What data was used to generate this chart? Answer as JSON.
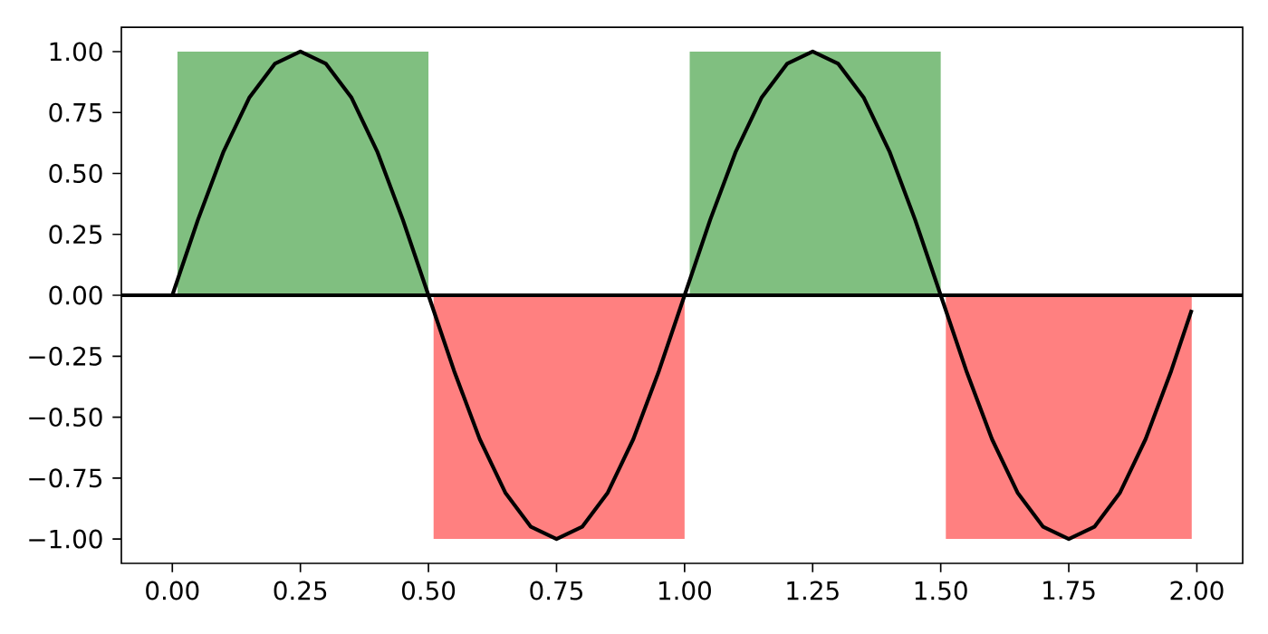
{
  "chart_data": {
    "type": "line",
    "xlim": [
      -0.0995,
      2.0895
    ],
    "ylim": [
      -1.1,
      1.1
    ],
    "xticks": [
      {
        "value": 0,
        "label": "0.00"
      },
      {
        "value": 0.25,
        "label": "0.25"
      },
      {
        "value": 0.5,
        "label": "0.50"
      },
      {
        "value": 0.75,
        "label": "0.75"
      },
      {
        "value": 1,
        "label": "1.00"
      },
      {
        "value": 1.25,
        "label": "1.25"
      },
      {
        "value": 1.5,
        "label": "1.50"
      },
      {
        "value": 1.75,
        "label": "1.75"
      },
      {
        "value": 2,
        "label": "2.00"
      }
    ],
    "yticks": [
      {
        "value": -1,
        "label": "−1.00"
      },
      {
        "value": -0.75,
        "label": "−0.75"
      },
      {
        "value": -0.5,
        "label": "−0.50"
      },
      {
        "value": -0.25,
        "label": "−0.25"
      },
      {
        "value": 0,
        "label": "0.00"
      },
      {
        "value": 0.25,
        "label": "0.25"
      },
      {
        "value": 0.5,
        "label": "0.50"
      },
      {
        "value": 0.75,
        "label": "0.75"
      },
      {
        "value": 1,
        "label": "1.00"
      }
    ],
    "series": [
      {
        "type": "area",
        "color": "#80bf80",
        "x": [
          0.01,
          0.5
        ],
        "values": [
          1,
          1
        ]
      },
      {
        "type": "area",
        "color": "#80bf80",
        "x": [
          1.01,
          1.5
        ],
        "values": [
          1,
          1
        ]
      },
      {
        "type": "area",
        "color": "#ff8080",
        "x": [
          0.51,
          1.0
        ],
        "values": [
          -1,
          -1
        ]
      },
      {
        "type": "area",
        "color": "#ff8080",
        "x": [
          1.51,
          1.99
        ],
        "values": [
          -1,
          -1
        ]
      },
      {
        "color": "#000000",
        "x": [
          0,
          0.05,
          0.1,
          0.15,
          0.2,
          0.25,
          0.3,
          0.35,
          0.4,
          0.45,
          0.5,
          0.55,
          0.6,
          0.65,
          0.7,
          0.75,
          0.8,
          0.85,
          0.9,
          0.95,
          1.0,
          1.05,
          1.1,
          1.15,
          1.2,
          1.25,
          1.3,
          1.35,
          1.4,
          1.45,
          1.5,
          1.55,
          1.6,
          1.65,
          1.7,
          1.75,
          1.8,
          1.85,
          1.9,
          1.95,
          1.99
        ],
        "values": [
          0,
          0.31,
          0.59,
          0.81,
          0.95,
          1,
          0.95,
          0.81,
          0.59,
          0.31,
          0,
          -0.31,
          -0.59,
          -0.81,
          -0.95,
          -1,
          -0.95,
          -0.81,
          -0.59,
          -0.31,
          0,
          0.31,
          0.59,
          0.81,
          0.95,
          1,
          0.95,
          0.81,
          0.59,
          0.31,
          0,
          -0.31,
          -0.59,
          -0.81,
          -0.95,
          -1,
          -0.95,
          -0.81,
          -0.59,
          -0.31,
          -0.06
        ]
      }
    ],
    "ref_lines": [
      {
        "axis": "y",
        "value": 0,
        "color": "#000000"
      }
    ],
    "grid": false
  }
}
